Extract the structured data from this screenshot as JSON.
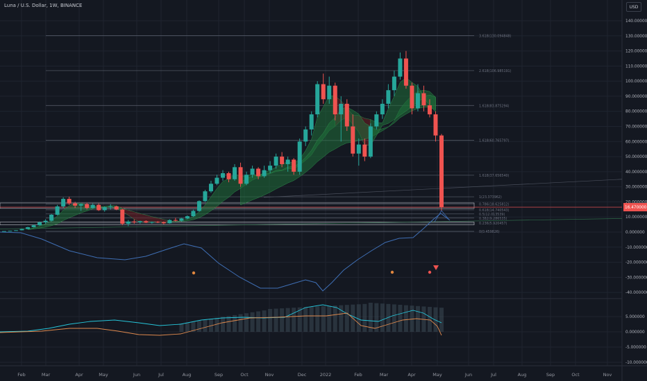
{
  "header": {
    "symbol_title": "Luna / U.S. Dollar, 1W, BINANCE",
    "currency_button": "USD"
  },
  "colors": {
    "background": "#141821",
    "grid": "#1f2430",
    "bull": "#26a69a",
    "bear": "#ef5350",
    "fib_line": "#5d6270",
    "wave_line": "#3f6fb5",
    "ribbon_green": "#1f6f3a",
    "ribbon_red": "#6e1f24",
    "macd_line": "#26c6da",
    "signal_line": "#e08a4e",
    "current_price_bg": "#ef5350",
    "marker_orange": "#e0863e"
  },
  "chart_data": {
    "type": "candlestick",
    "title": "Luna / U.S. Dollar, 1W, BINANCE",
    "x_axis_labels": [
      "Feb",
      "Mar",
      "Apr",
      "May",
      "Jun",
      "Jul",
      "Aug",
      "Sep",
      "Oct",
      "Nov",
      "Dec",
      "2022",
      "Feb",
      "Mar",
      "Apr",
      "May",
      "Jun",
      "Jul",
      "Aug",
      "Sep",
      "Oct",
      "Nov"
    ],
    "price_axis_labels": [
      "140.000000",
      "130.000000",
      "120.000000",
      "110.000000",
      "100.000000",
      "90.000000",
      "80.000000",
      "70.000000",
      "60.000000",
      "50.000000",
      "40.000000",
      "30.000000",
      "20.000000",
      "10.000000",
      "0.000000",
      "-10.000000",
      "-20.000000",
      "-30.000000",
      "-40.000000"
    ],
    "oscillator_axis_labels": [
      "5.000000",
      "0.000000",
      "-5.000000",
      "-10.000000"
    ],
    "current_price_label": "16.470000",
    "fib_levels": [
      {
        "label": "3.618(130.094848)",
        "value": 130.09
      },
      {
        "label": "2.618(106.985191)",
        "value": 106.99
      },
      {
        "label": "1.618(83.875294)",
        "value": 83.88
      },
      {
        "label": "1.618(60.765797)",
        "value": 60.77
      },
      {
        "label": "1.618(37.656540)",
        "value": 37.66
      },
      {
        "label": "1(23.373962)",
        "value": 23.37
      },
      {
        "label": "0.786(18.625812)",
        "value": 18.63
      },
      {
        "label": "0.618(14.740543)",
        "value": 14.74
      },
      {
        "label": "0.5(12.013539)",
        "value": 12.01
      },
      {
        "label": "0.382(9.286535)",
        "value": 9.29
      },
      {
        "label": "0.236(5.920457)",
        "value": 5.92
      },
      {
        "label": "0(0.459826)",
        "value": 0.46
      }
    ],
    "candles": [
      [
        0.6,
        0.7,
        0.5,
        0.65
      ],
      [
        0.65,
        0.9,
        0.6,
        0.85
      ],
      [
        0.85,
        1.3,
        0.8,
        1.2
      ],
      [
        1.2,
        2.2,
        1.1,
        2.0
      ],
      [
        2.0,
        3.5,
        1.9,
        3.2
      ],
      [
        3.2,
        5.0,
        3.0,
        4.5
      ],
      [
        4.5,
        7.0,
        4.2,
        6.5
      ],
      [
        6.5,
        8.5,
        5.5,
        7.5
      ],
      [
        7.5,
        12.0,
        7.0,
        11.5
      ],
      [
        11.5,
        18.0,
        11.0,
        17.0
      ],
      [
        17.0,
        23.0,
        16.0,
        22.0
      ],
      [
        22.0,
        23.4,
        18.0,
        19.0
      ],
      [
        19.0,
        20.0,
        16.0,
        17.5
      ],
      [
        17.5,
        19.0,
        14.0,
        18.5
      ],
      [
        18.5,
        19.5,
        15.0,
        16.0
      ],
      [
        16.0,
        19.0,
        15.5,
        18.0
      ],
      [
        18.0,
        19.0,
        14.0,
        14.5
      ],
      [
        14.5,
        17.0,
        13.5,
        16.5
      ],
      [
        16.5,
        18.5,
        15.0,
        17.0
      ],
      [
        17.0,
        17.5,
        14.5,
        15.0
      ],
      [
        15.0,
        15.5,
        4.5,
        5.5
      ],
      [
        5.5,
        8.0,
        4.0,
        7.0
      ],
      [
        7.0,
        8.5,
        5.5,
        6.5
      ],
      [
        6.5,
        7.5,
        5.5,
        7.2
      ],
      [
        7.2,
        7.8,
        6.0,
        6.3
      ],
      [
        6.3,
        7.0,
        5.5,
        6.8
      ],
      [
        6.8,
        7.2,
        6.0,
        6.5
      ],
      [
        6.5,
        7.0,
        5.2,
        5.8
      ],
      [
        5.8,
        8.5,
        5.5,
        8.0
      ],
      [
        8.0,
        9.5,
        7.0,
        7.5
      ],
      [
        7.5,
        9.5,
        7.0,
        9.0
      ],
      [
        9.0,
        11.0,
        8.5,
        10.5
      ],
      [
        10.5,
        15.0,
        10.0,
        14.0
      ],
      [
        14.0,
        21.0,
        13.5,
        20.5
      ],
      [
        20.5,
        28.0,
        20.0,
        27.0
      ],
      [
        27.0,
        34.0,
        26.0,
        32.0
      ],
      [
        32.0,
        38.0,
        31.0,
        36.0
      ],
      [
        36.0,
        41.0,
        34.0,
        39.0
      ],
      [
        39.0,
        40.0,
        33.0,
        35.0
      ],
      [
        35.0,
        45.0,
        34.0,
        43.0
      ],
      [
        43.0,
        46.0,
        30.0,
        32.0
      ],
      [
        32.0,
        40.0,
        31.0,
        38.0
      ],
      [
        38.0,
        44.0,
        36.0,
        42.0
      ],
      [
        42.0,
        43.0,
        35.0,
        37.0
      ],
      [
        37.0,
        44.0,
        36.0,
        41.0
      ],
      [
        41.0,
        47.0,
        39.0,
        44.0
      ],
      [
        44.0,
        52.0,
        42.0,
        50.0
      ],
      [
        50.0,
        53.0,
        43.0,
        45.0
      ],
      [
        45.0,
        50.0,
        40.0,
        48.0
      ],
      [
        48.0,
        49.0,
        38.0,
        40.0
      ],
      [
        40.0,
        62.0,
        38.0,
        60.0
      ],
      [
        60.0,
        70.0,
        57.0,
        68.0
      ],
      [
        68.0,
        80.0,
        64.0,
        78.0
      ],
      [
        78.0,
        100.0,
        76.0,
        98.0
      ],
      [
        98.0,
        105.0,
        85.0,
        88.0
      ],
      [
        88.0,
        103.0,
        85.0,
        97.0
      ],
      [
        97.0,
        99.0,
        74.0,
        78.0
      ],
      [
        78.0,
        90.0,
        60.0,
        85.0
      ],
      [
        85.0,
        88.0,
        67.0,
        70.0
      ],
      [
        70.0,
        78.0,
        50.0,
        52.0
      ],
      [
        52.0,
        62.0,
        44.0,
        58.0
      ],
      [
        58.0,
        62.0,
        47.0,
        50.0
      ],
      [
        50.0,
        72.0,
        49.0,
        70.0
      ],
      [
        70.0,
        80.0,
        68.0,
        78.0
      ],
      [
        78.0,
        88.0,
        75.0,
        85.0
      ],
      [
        85.0,
        98.0,
        82.0,
        94.0
      ],
      [
        94.0,
        107.0,
        90.0,
        103.0
      ],
      [
        103.0,
        119.0,
        101.0,
        115.0
      ],
      [
        115.0,
        120.0,
        95.0,
        97.0
      ],
      [
        97.0,
        99.0,
        78.0,
        82.0
      ],
      [
        82.0,
        98.0,
        80.0,
        92.0
      ],
      [
        92.0,
        97.0,
        80.0,
        84.0
      ],
      [
        84.0,
        88.0,
        76.0,
        78.0
      ],
      [
        78.0,
        80.0,
        60.0,
        64.0
      ],
      [
        64.0,
        65.0,
        14.0,
        16.5
      ]
    ]
  }
}
